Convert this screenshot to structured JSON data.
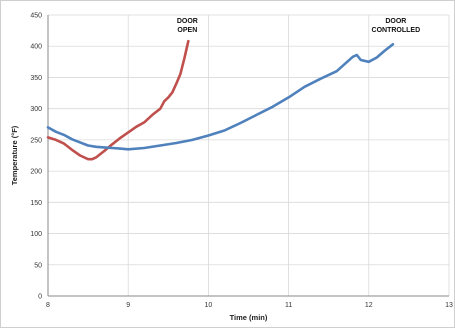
{
  "chart_data": {
    "type": "line",
    "xlabel": "Time (min)",
    "ylabel": "Temperature (°F)",
    "xlim": [
      8,
      13
    ],
    "ylim": [
      0,
      450
    ],
    "xticks": [
      "8",
      "9",
      "10",
      "11",
      "12",
      "13"
    ],
    "yticks": [
      "0",
      "50",
      "100",
      "150",
      "200",
      "250",
      "300",
      "350",
      "400",
      "450"
    ],
    "grid": true,
    "series": [
      {
        "color": "#c0504d",
        "annotation": [
          "DOOR",
          "OPEN"
        ],
        "x": [
          8.0,
          8.1,
          8.2,
          8.3,
          8.4,
          8.5,
          8.55,
          8.6,
          8.7,
          8.8,
          8.9,
          9.0,
          9.1,
          9.2,
          9.3,
          9.4,
          9.45,
          9.5,
          9.55,
          9.6,
          9.65,
          9.7,
          9.75
        ],
        "y": [
          254,
          250,
          244,
          234,
          225,
          219,
          219,
          222,
          232,
          243,
          253,
          262,
          271,
          278,
          290,
          300,
          312,
          318,
          326,
          340,
          355,
          380,
          408
        ]
      },
      {
        "color": "#4f81bd",
        "annotation": [
          "DOOR",
          "CONTROLLED"
        ],
        "x": [
          8.0,
          8.1,
          8.2,
          8.3,
          8.4,
          8.5,
          8.6,
          8.7,
          8.8,
          8.9,
          9.0,
          9.2,
          9.4,
          9.6,
          9.8,
          10.0,
          10.2,
          10.4,
          10.6,
          10.8,
          11.0,
          11.2,
          11.4,
          11.6,
          11.8,
          11.85,
          11.9,
          12.0,
          12.1,
          12.2,
          12.3
        ],
        "y": [
          270,
          263,
          258,
          251,
          246,
          241,
          239,
          238,
          237,
          236,
          235,
          237,
          241,
          245,
          250,
          257,
          265,
          277,
          290,
          303,
          318,
          335,
          348,
          360,
          383,
          386,
          378,
          375,
          382,
          393,
          403
        ]
      }
    ]
  }
}
